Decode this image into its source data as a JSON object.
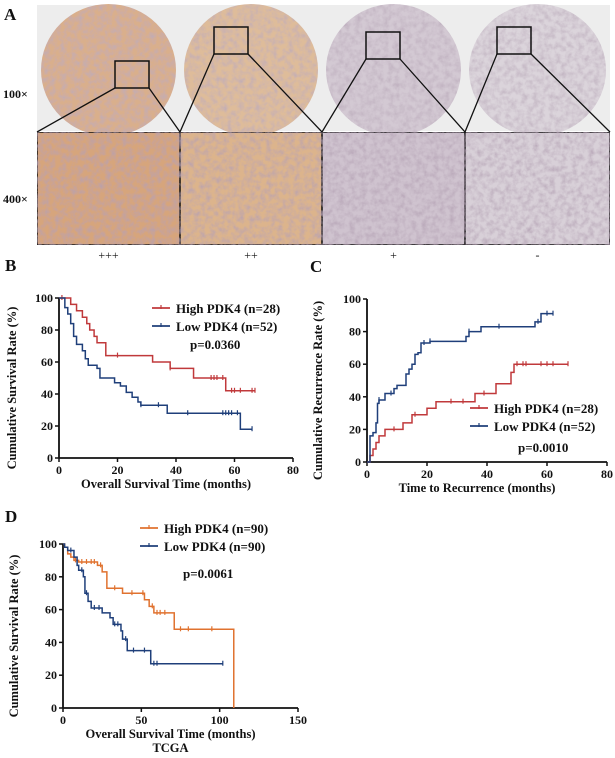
{
  "panel_a": {
    "label": "A",
    "row_labels": [
      "100×",
      "400×"
    ],
    "score_labels": [
      "+++",
      "++",
      "+",
      "-"
    ],
    "stain_colors": [
      "#d6a57c",
      "#dcb48c",
      "#cfc3cf",
      "#d8d0d8"
    ]
  },
  "chart_data": [
    {
      "panel": "B",
      "type": "line",
      "subtype": "kaplan-meier",
      "xlabel": "Overall Survival Time (months)",
      "ylabel": "Cumulative Survival Rate (%)",
      "xlim": [
        0,
        80
      ],
      "ylim": [
        0,
        100
      ],
      "xticks": [
        "0",
        "20",
        "40",
        "60",
        "80"
      ],
      "yticks": [
        "0",
        "20",
        "40",
        "60",
        "80",
        "100"
      ],
      "annotation": "p=0.0360",
      "legend_position": "top-right",
      "series": [
        {
          "name": "High PDK4 (n=28)",
          "color": "#c0393b",
          "steps": [
            [
              0,
              100
            ],
            [
              4,
              96
            ],
            [
              6,
              92
            ],
            [
              8,
              88
            ],
            [
              9.5,
              84
            ],
            [
              10.5,
              80
            ],
            [
              12,
              76
            ],
            [
              13,
              72
            ],
            [
              16,
              64
            ],
            [
              32,
              60
            ],
            [
              38,
              56
            ],
            [
              46,
              50
            ],
            [
              57,
              42
            ]
          ],
          "end": 67,
          "censored": [
            1,
            20,
            38,
            52,
            53,
            54,
            56,
            59,
            60,
            62,
            66,
            67
          ]
        },
        {
          "name": "Low PDK4 (n=52)",
          "color": "#1f3f7a",
          "steps": [
            [
              0,
              100
            ],
            [
              2,
              94
            ],
            [
              3,
              90
            ],
            [
              4,
              84
            ],
            [
              5,
              76
            ],
            [
              6,
              71
            ],
            [
              8,
              67
            ],
            [
              9,
              62
            ],
            [
              10,
              58
            ],
            [
              13,
              56
            ],
            [
              14,
              50
            ],
            [
              19,
              47
            ],
            [
              21,
              45
            ],
            [
              23,
              41
            ],
            [
              25,
              38
            ],
            [
              27,
              35
            ],
            [
              28,
              33
            ],
            [
              37,
              28
            ],
            [
              62,
              18
            ]
          ],
          "end": 66,
          "censored": [
            28,
            34,
            44,
            56,
            57,
            58,
            59,
            61,
            66
          ]
        }
      ]
    },
    {
      "panel": "C",
      "type": "line",
      "subtype": "kaplan-meier",
      "xlabel": "Time to Recurrence (months)",
      "ylabel": "Cumulative Recurrence Rate (%)",
      "xlim": [
        0,
        80
      ],
      "ylim": [
        0,
        100
      ],
      "xticks": [
        "0",
        "20",
        "40",
        "60",
        "80"
      ],
      "yticks": [
        "0",
        "20",
        "40",
        "60",
        "80",
        "100"
      ],
      "annotation": "p=0.0010",
      "legend_position": "bottom-right",
      "series": [
        {
          "name": "High PDK4 (n=28)",
          "color": "#c0393b",
          "steps": [
            [
              0,
              0
            ],
            [
              1,
              4
            ],
            [
              2,
              8
            ],
            [
              3,
              12
            ],
            [
              4,
              16
            ],
            [
              6,
              20
            ],
            [
              12,
              24
            ],
            [
              15,
              29
            ],
            [
              20,
              33
            ],
            [
              23,
              37
            ],
            [
              36,
              42
            ],
            [
              43,
              48
            ],
            [
              48,
              55
            ],
            [
              49,
              60
            ]
          ],
          "end": 67,
          "censored": [
            9,
            16,
            28,
            32,
            39,
            50,
            52,
            53,
            58,
            60,
            62,
            67
          ]
        },
        {
          "name": "Low PDK4 (n=52)",
          "color": "#1f3f7a",
          "steps": [
            [
              0,
              0
            ],
            [
              1,
              16
            ],
            [
              2,
              18
            ],
            [
              3,
              24
            ],
            [
              3.5,
              36
            ],
            [
              4,
              38
            ],
            [
              6,
              42
            ],
            [
              9,
              45
            ],
            [
              10,
              47
            ],
            [
              13,
              54
            ],
            [
              14,
              57
            ],
            [
              15,
              60
            ],
            [
              16,
              66
            ],
            [
              17,
              67
            ],
            [
              18,
              73
            ],
            [
              21,
              74
            ],
            [
              33,
              77
            ],
            [
              34,
              80
            ],
            [
              38,
              83
            ],
            [
              56,
              86
            ],
            [
              58,
              91
            ]
          ],
          "end": 62,
          "censored": [
            4,
            8,
            19,
            21,
            34,
            44,
            57,
            60,
            62
          ]
        }
      ]
    },
    {
      "panel": "D",
      "type": "line",
      "subtype": "kaplan-meier",
      "xlabel": "Overall Survival Time (months)",
      "subtitle": "TCGA",
      "ylabel": "Cumulative Survival Rate (%)",
      "xlim": [
        0,
        150
      ],
      "ylim": [
        0,
        100
      ],
      "xticks": [
        "0",
        "50",
        "100",
        "150"
      ],
      "yticks": [
        "0",
        "20",
        "40",
        "60",
        "80",
        "100"
      ],
      "annotation": "p=0.0061",
      "legend_position": "top-right",
      "series": [
        {
          "name": "High PDK4 (n=90)",
          "color": "#e0722f",
          "steps": [
            [
              0,
              100
            ],
            [
              1,
              98
            ],
            [
              3,
              94
            ],
            [
              5,
              92
            ],
            [
              7,
              90
            ],
            [
              10,
              89
            ],
            [
              22,
              87
            ],
            [
              25,
              83
            ],
            [
              28,
              73
            ],
            [
              38,
              70
            ],
            [
              52,
              66
            ],
            [
              55,
              62
            ],
            [
              58,
              58
            ],
            [
              71,
              48
            ],
            [
              109,
              0
            ]
          ],
          "end": 109,
          "censored": [
            8,
            12,
            15,
            18,
            20,
            24,
            33,
            44,
            51,
            57,
            60,
            62,
            65,
            75,
            80,
            95
          ]
        },
        {
          "name": "Low PDK4 (n=90)",
          "color": "#1f3f7a",
          "steps": [
            [
              0,
              100
            ],
            [
              1,
              98
            ],
            [
              3,
              96
            ],
            [
              7,
              92
            ],
            [
              9,
              87
            ],
            [
              10,
              84
            ],
            [
              13,
              80
            ],
            [
              14,
              70
            ],
            [
              16,
              65
            ],
            [
              18,
              61
            ],
            [
              25,
              58
            ],
            [
              30,
              55
            ],
            [
              32,
              51
            ],
            [
              37,
              47
            ],
            [
              38,
              42
            ],
            [
              41,
              35
            ],
            [
              56,
              27
            ]
          ],
          "end": 102,
          "censored": [
            5,
            12,
            15,
            20,
            23,
            33,
            35,
            40,
            45,
            52,
            58,
            60,
            102
          ]
        }
      ]
    }
  ]
}
